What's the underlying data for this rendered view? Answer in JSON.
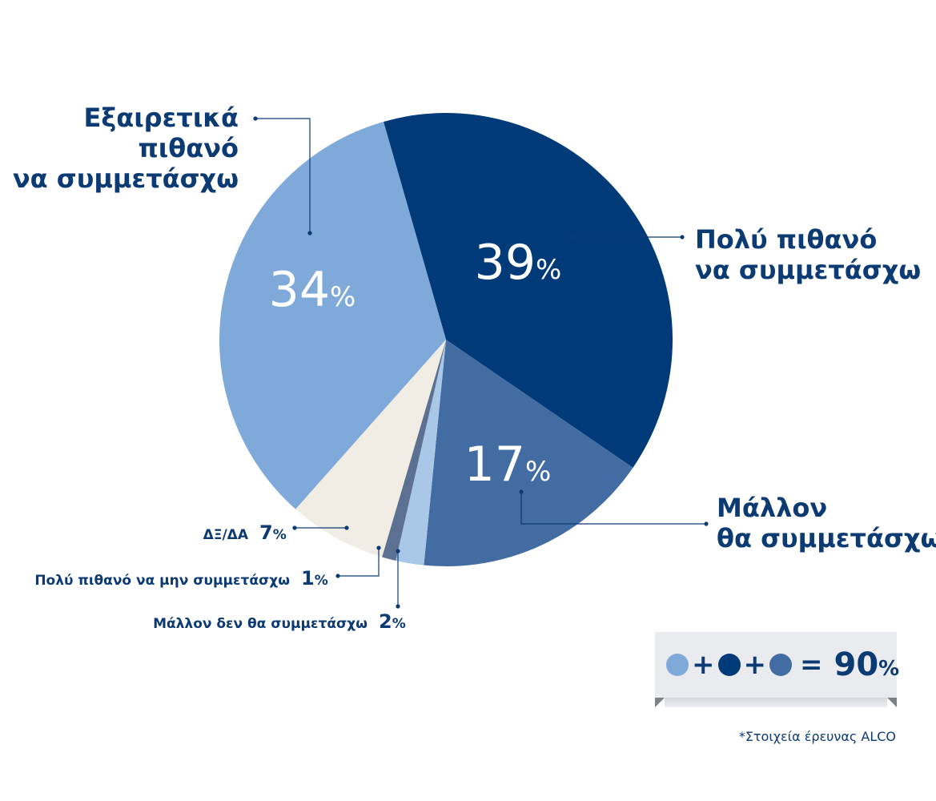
{
  "chart_data": {
    "type": "pie",
    "slices": [
      {
        "label": "Πολύ πιθανό να συμμετάσχω",
        "lines": [
          "Πολύ πιθανό",
          "να συμμετάσχω"
        ],
        "value": 39,
        "color": "#003a78"
      },
      {
        "label": "Μάλλον θα συμμετάσχω",
        "lines": [
          "Μάλλον",
          "θα συμμετάσχω"
        ],
        "value": 17,
        "color": "#436ca3"
      },
      {
        "label": "Μάλλον δεν θα συμμετάσχω",
        "lines": [
          "Μάλλον δεν θα συμμετάσχω"
        ],
        "value": 2,
        "color": "#a9c8e8"
      },
      {
        "label": "Πολύ πιθανό να μην συμμετάσχω",
        "lines": [
          "Πολύ πιθανό να μην συμμετάσχω"
        ],
        "value": 1,
        "color": "#5c7191"
      },
      {
        "label": "ΔΞ/ΔΑ",
        "lines": [
          "ΔΞ/ΔΑ"
        ],
        "value": 7,
        "color": "#f1ede4"
      },
      {
        "label": "Εξαιρετικά πιθανό να συμμετάσχω",
        "lines": [
          "Εξαιρετικά",
          "πιθανό",
          "να συμμετάσχω"
        ],
        "value": 34,
        "color": "#7fa9d9"
      }
    ],
    "percent_sign": "%",
    "title": "",
    "legend": "none"
  },
  "summary": {
    "dots": [
      "#7fa9d9",
      "#003a78",
      "#436ca3"
    ],
    "plus": "+",
    "equals": "=",
    "total_value": "90",
    "total_unit": "%"
  },
  "source_note": "*Στοιχεία έρευνας ALCO"
}
